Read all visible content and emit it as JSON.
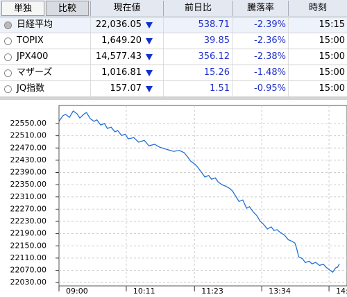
{
  "tabs": [
    "単独",
    "比較"
  ],
  "table": {
    "headers": [
      "現在値",
      "前日比",
      "騰落率",
      "時刻"
    ],
    "rows": [
      [
        "日経平均",
        "22,036.05",
        "538.71",
        "-2.39%",
        "15:15"
      ],
      [
        "TOPIX",
        "1,649.20",
        "39.85",
        "-2.36%",
        "15:00"
      ],
      [
        "JPX400",
        "14,577.43",
        "356.12",
        "-2.38%",
        "15:00"
      ],
      [
        "マザーズ",
        "1,016.81",
        "15.26",
        "-1.48%",
        "15:00"
      ],
      [
        "JQ指数",
        "157.07",
        "1.51",
        "-0.95%",
        "15:00"
      ]
    ]
  },
  "chart_data": {
    "type": "line",
    "x": [
      0,
      4,
      7,
      11,
      15,
      19,
      22,
      26,
      29,
      33,
      37,
      40,
      44,
      48,
      51,
      55,
      59,
      62,
      66,
      70,
      73,
      79,
      84,
      90,
      95,
      101,
      106,
      113,
      121,
      127,
      132,
      136,
      139,
      143,
      146,
      150,
      154,
      158,
      161,
      165,
      168,
      172,
      176,
      180,
      183,
      187,
      190,
      194,
      198,
      201,
      205,
      209,
      212,
      216,
      220,
      224,
      227,
      230,
      234,
      238,
      242,
      246,
      249,
      251,
      253,
      257,
      260,
      264,
      267,
      271,
      275,
      279,
      282,
      286,
      289,
      292,
      294,
      296
    ],
    "series": [
      {
        "name": "日経平均",
        "color": "#1f6fd6",
        "values": [
          22557,
          22575,
          22580,
          22570,
          22591,
          22582,
          22568,
          22580,
          22586,
          22566,
          22557,
          22562,
          22545,
          22550,
          22534,
          22538,
          22523,
          22527,
          22511,
          22515,
          22500,
          22504,
          22489,
          22495,
          22477,
          22482,
          22473,
          22466,
          22459,
          22462,
          22455,
          22440,
          22427,
          22418,
          22409,
          22392,
          22375,
          22380,
          22368,
          22372,
          22359,
          22350,
          22345,
          22338,
          22330,
          22310,
          22295,
          22300,
          22273,
          22278,
          22261,
          22248,
          22232,
          22220,
          22205,
          22212,
          22200,
          22203,
          22193,
          22185,
          22170,
          22165,
          22159,
          22140,
          22114,
          22108,
          22095,
          22100,
          22091,
          22096,
          22086,
          22090,
          22080,
          22070,
          22064,
          22078,
          22080,
          22091
        ]
      }
    ],
    "xlim": [
      0,
      304
    ],
    "ylim": [
      22019,
      22609
    ],
    "xticks": [
      {
        "value": 0,
        "label": "09:00"
      },
      {
        "value": 71,
        "label": "10:11"
      },
      {
        "value": 143,
        "label": "11:23"
      },
      {
        "value": 214,
        "label": "13:34"
      },
      {
        "value": 285,
        "label": "14:"
      }
    ],
    "yticks": [
      {
        "value": 22030,
        "label": "22030.00"
      },
      {
        "value": 22070,
        "label": "22070.00"
      },
      {
        "value": 22110,
        "label": "22110.00"
      },
      {
        "value": 22150,
        "label": "22150.00"
      },
      {
        "value": 22190,
        "label": "22190.00"
      },
      {
        "value": 22230,
        "label": "22230.00"
      },
      {
        "value": 22270,
        "label": "22270.00"
      },
      {
        "value": 22310,
        "label": "22310.00"
      },
      {
        "value": 22350,
        "label": "22350.00"
      },
      {
        "value": 22390,
        "label": "22390.00"
      },
      {
        "value": 22430,
        "label": "22430.00"
      },
      {
        "value": 22470,
        "label": "22470.00"
      },
      {
        "value": 22510,
        "label": "22510.00"
      },
      {
        "value": 22550,
        "label": "22550.00"
      }
    ],
    "grid": true
  }
}
